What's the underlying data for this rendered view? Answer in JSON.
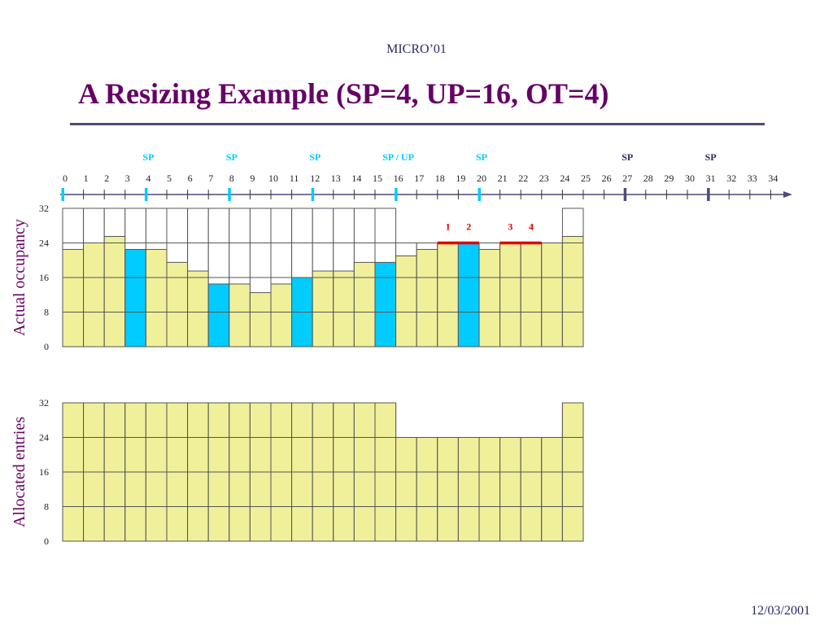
{
  "header": {
    "conference": "MICRO’01"
  },
  "slide": {
    "title": "A Resizing Example (SP=4, UP=16, OT=4)"
  },
  "footer": {
    "date": "12/03/2001"
  },
  "colors": {
    "fill": "#f0f09a",
    "highlight": "#00ccff",
    "grid": "#555555",
    "sp_cyan": "#00ccff",
    "sp_dark": "#4c4c7a",
    "marker_red": "#e00000",
    "title": "#660066"
  },
  "timeline": {
    "ticks": [
      "0",
      "1",
      "2",
      "3",
      "4",
      "5",
      "6",
      "7",
      "8",
      "9",
      "10",
      "11",
      "12",
      "13",
      "14",
      "15",
      "16",
      "17",
      "18",
      "19",
      "20",
      "21",
      "22",
      "23",
      "24",
      "25",
      "26",
      "27",
      "28",
      "29",
      "30",
      "31",
      "32",
      "33",
      "34"
    ],
    "sp_markers": [
      {
        "pos": 4,
        "label": "SP",
        "style": "cyan"
      },
      {
        "pos": 8,
        "label": "SP",
        "style": "cyan"
      },
      {
        "pos": 12,
        "label": "SP",
        "style": "cyan"
      },
      {
        "pos": 16,
        "label": "SP / UP",
        "style": "cyan"
      },
      {
        "pos": 20,
        "label": "SP",
        "style": "cyan"
      },
      {
        "pos": 27,
        "label": "SP",
        "style": "dark"
      },
      {
        "pos": 31,
        "label": "SP",
        "style": "dark"
      }
    ],
    "start_mark": {
      "pos": 0,
      "style": "cyan"
    }
  },
  "chart_data": [
    {
      "type": "bar",
      "ylabel": "Actual occupancy",
      "yticks": [
        "32",
        "24",
        "16",
        "8",
        "0"
      ],
      "ylim": [
        0,
        32
      ],
      "categories": [
        "0",
        "1",
        "2",
        "3",
        "4",
        "5",
        "6",
        "7",
        "8",
        "9",
        "10",
        "11",
        "12",
        "13",
        "14",
        "15",
        "16",
        "17",
        "18",
        "19",
        "20",
        "21",
        "22",
        "23",
        "24"
      ],
      "values": [
        22.5,
        24,
        25.5,
        22.5,
        22.5,
        19.5,
        17.5,
        14.5,
        14.5,
        12.5,
        14.5,
        16,
        17.5,
        17.5,
        19.5,
        19.5,
        21,
        22.5,
        24,
        24,
        22.5,
        24,
        24,
        24,
        25.5
      ],
      "allocated": [
        32,
        32,
        32,
        32,
        32,
        32,
        32,
        32,
        32,
        32,
        32,
        32,
        32,
        32,
        32,
        32,
        24,
        24,
        24,
        24,
        24,
        24,
        24,
        24,
        32
      ],
      "highlighted": [
        3,
        7,
        11,
        15,
        19
      ],
      "markers": [
        {
          "label": "1",
          "at": 18
        },
        {
          "label": "2",
          "at": 19
        },
        {
          "label": "3",
          "at": 21
        },
        {
          "label": "4",
          "at": 22
        }
      ],
      "red_segments": [
        [
          18,
          19
        ],
        [
          21,
          22
        ]
      ]
    },
    {
      "type": "bar",
      "ylabel": "Allocated entries",
      "yticks": [
        "32",
        "24",
        "16",
        "8",
        "0"
      ],
      "ylim": [
        0,
        32
      ],
      "categories": [
        "0",
        "1",
        "2",
        "3",
        "4",
        "5",
        "6",
        "7",
        "8",
        "9",
        "10",
        "11",
        "12",
        "13",
        "14",
        "15",
        "16",
        "17",
        "18",
        "19",
        "20",
        "21",
        "22",
        "23",
        "24"
      ],
      "values": [
        32,
        32,
        32,
        32,
        32,
        32,
        32,
        32,
        32,
        32,
        32,
        32,
        32,
        32,
        32,
        32,
        24,
        24,
        24,
        24,
        24,
        24,
        24,
        24,
        32
      ]
    }
  ]
}
